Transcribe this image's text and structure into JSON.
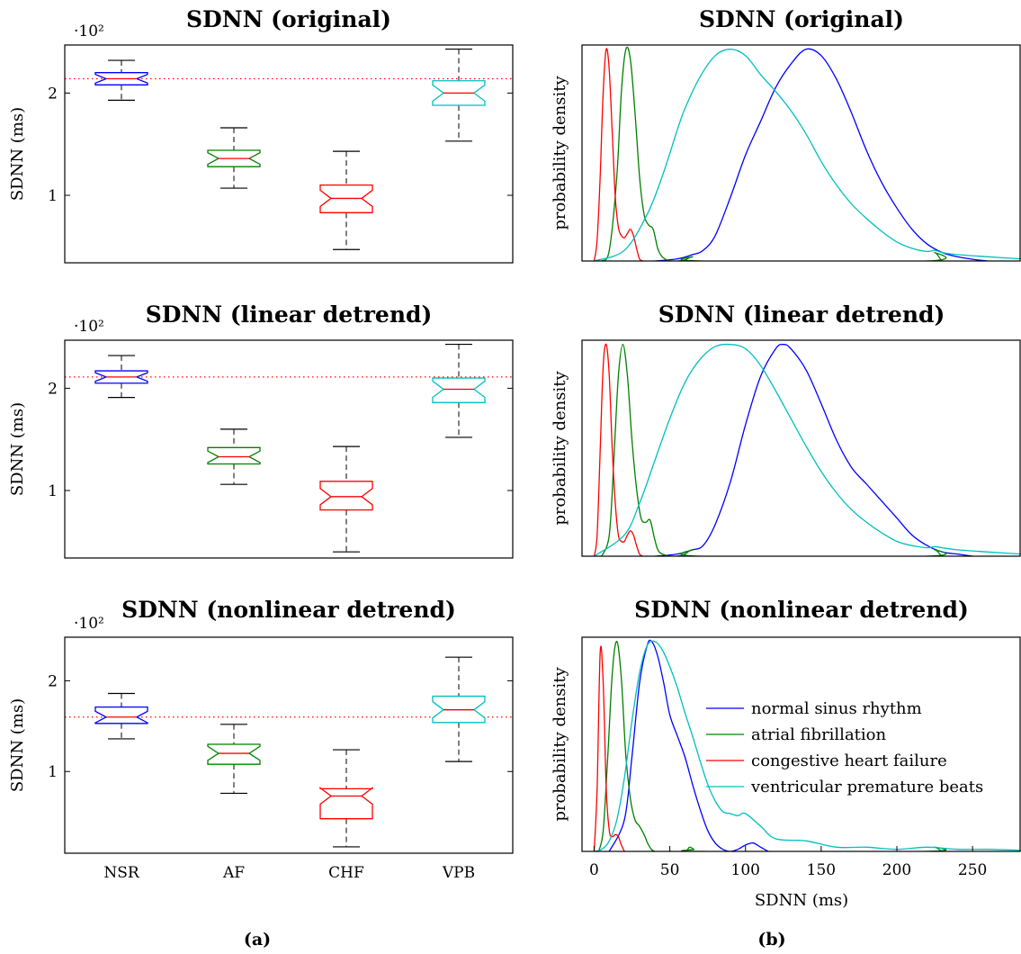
{
  "figure": {
    "left_label": "(a)",
    "right_label": "(b)"
  },
  "colors": {
    "normal sinus rhythm": "#0000ff",
    "atrial fibrillation": "#008000",
    "congestive heart failure": "#ff0000",
    "ventricular premature beats": "#00bfbf",
    "median": "#ff0000",
    "reference": "#ff0000"
  },
  "chart_data": [
    {
      "type": "box",
      "title": "SDNN (original)",
      "ylabel": "SDNN (ms)",
      "ytick_scale_label": "·10²",
      "yticks": [
        1,
        2
      ],
      "ylim": [
        0.34,
        2.47
      ],
      "categories": [
        "NSR",
        "AF",
        "CHF",
        "VPB"
      ],
      "reference_line": 2.14,
      "boxes": [
        {
          "category": "NSR",
          "whisker_low": 1.93,
          "q1": 2.08,
          "median": 2.14,
          "q3": 2.2,
          "whisker_high": 2.32
        },
        {
          "category": "AF",
          "whisker_low": 1.07,
          "q1": 1.28,
          "median": 1.36,
          "q3": 1.44,
          "whisker_high": 1.66
        },
        {
          "category": "CHF",
          "whisker_low": 0.47,
          "q1": 0.83,
          "median": 0.97,
          "q3": 1.1,
          "whisker_high": 1.43
        },
        {
          "category": "VPB",
          "whisker_low": 1.53,
          "q1": 1.88,
          "median": 2.0,
          "q3": 2.12,
          "whisker_high": 2.43
        }
      ]
    },
    {
      "type": "box",
      "title": "SDNN (linear detrend)",
      "ylabel": "SDNN (ms)",
      "ytick_scale_label": "·10²",
      "yticks": [
        1,
        2
      ],
      "ylim": [
        0.34,
        2.47
      ],
      "categories": [
        "NSR",
        "AF",
        "CHF",
        "VPB"
      ],
      "reference_line": 2.11,
      "boxes": [
        {
          "category": "NSR",
          "whisker_low": 1.91,
          "q1": 2.05,
          "median": 2.11,
          "q3": 2.17,
          "whisker_high": 2.32
        },
        {
          "category": "AF",
          "whisker_low": 1.06,
          "q1": 1.26,
          "median": 1.33,
          "q3": 1.42,
          "whisker_high": 1.6
        },
        {
          "category": "CHF",
          "whisker_low": 0.4,
          "q1": 0.81,
          "median": 0.94,
          "q3": 1.09,
          "whisker_high": 1.43
        },
        {
          "category": "VPB",
          "whisker_low": 1.52,
          "q1": 1.86,
          "median": 1.99,
          "q3": 2.1,
          "whisker_high": 2.43
        }
      ]
    },
    {
      "type": "box",
      "title": "SDNN (nonlinear detrend)",
      "ylabel": "SDNN (ms)",
      "ytick_scale_label": "·10²",
      "yticks": [
        1,
        2
      ],
      "ylim": [
        0.1,
        2.48
      ],
      "xtick_labels": [
        "NSR",
        "AF",
        "CHF",
        "VPB"
      ],
      "categories": [
        "NSR",
        "AF",
        "CHF",
        "VPB"
      ],
      "reference_line": 1.6,
      "boxes": [
        {
          "category": "NSR",
          "whisker_low": 1.36,
          "q1": 1.53,
          "median": 1.6,
          "q3": 1.71,
          "whisker_high": 1.86
        },
        {
          "category": "AF",
          "whisker_low": 0.76,
          "q1": 1.08,
          "median": 1.2,
          "q3": 1.3,
          "whisker_high": 1.52
        },
        {
          "category": "CHF",
          "whisker_low": 0.17,
          "q1": 0.48,
          "median": 0.73,
          "q3": 0.81,
          "whisker_high": 1.24
        },
        {
          "category": "VPB",
          "whisker_low": 1.11,
          "q1": 1.54,
          "median": 1.68,
          "q3": 1.83,
          "whisker_high": 2.26
        }
      ]
    },
    {
      "type": "line",
      "title": "SDNN (original)",
      "ylabel": "probability density",
      "xlim": [
        -8,
        282
      ],
      "ylim": [
        0,
        1.02
      ],
      "series": [
        {
          "name": "normal sinus rhythm",
          "x": [
            40,
            55,
            65,
            72,
            80,
            90,
            100,
            110,
            120,
            130,
            140,
            150,
            160,
            170,
            180,
            190,
            200,
            210,
            220,
            230,
            240,
            250,
            260
          ],
          "y": [
            0,
            0.01,
            0.03,
            0.05,
            0.12,
            0.3,
            0.5,
            0.66,
            0.82,
            0.93,
            1.0,
            0.97,
            0.86,
            0.7,
            0.52,
            0.37,
            0.25,
            0.15,
            0.08,
            0.04,
            0.02,
            0.008,
            0
          ]
        },
        {
          "name": "atrial fibrillation",
          "x": [
            5,
            10,
            15,
            18,
            21,
            24,
            27,
            30,
            33,
            36,
            39,
            42,
            45,
            50,
            55,
            60,
            65,
            70,
            220,
            225,
            230,
            235
          ],
          "y": [
            0,
            0.05,
            0.4,
            0.8,
            1.0,
            0.95,
            0.7,
            0.4,
            0.22,
            0.17,
            0.15,
            0.06,
            0.02,
            0,
            0,
            0.005,
            0.02,
            0,
            0,
            0.04,
            0,
            0
          ]
        },
        {
          "name": "congestive heart failure",
          "x": [
            0,
            2,
            4,
            6,
            8,
            10,
            12,
            14,
            16,
            18,
            20,
            22,
            24,
            26,
            28,
            30,
            32
          ],
          "y": [
            0,
            0.1,
            0.4,
            0.8,
            1.0,
            0.9,
            0.6,
            0.3,
            0.16,
            0.12,
            0.11,
            0.13,
            0.15,
            0.12,
            0.06,
            0.01,
            0
          ]
        },
        {
          "name": "ventricular premature beats",
          "x": [
            0,
            20,
            35,
            45,
            55,
            60,
            70,
            80,
            90,
            100,
            110,
            120,
            130,
            140,
            150,
            160,
            170,
            180,
            190,
            200,
            210,
            220,
            225,
            230,
            240,
            260,
            282
          ],
          "y": [
            0,
            0.05,
            0.22,
            0.4,
            0.62,
            0.72,
            0.87,
            0.97,
            1.0,
            0.97,
            0.88,
            0.8,
            0.71,
            0.6,
            0.47,
            0.36,
            0.27,
            0.2,
            0.14,
            0.09,
            0.06,
            0.045,
            0.05,
            0.04,
            0.03,
            0.02,
            0.01
          ]
        }
      ]
    },
    {
      "type": "line",
      "title": "SDNN (linear detrend)",
      "ylabel": "probability density",
      "xlim": [
        -8,
        282
      ],
      "ylim": [
        0,
        1.02
      ],
      "series": [
        {
          "name": "normal sinus rhythm",
          "x": [
            40,
            55,
            65,
            72,
            80,
            90,
            100,
            110,
            120,
            125,
            130,
            140,
            150,
            160,
            170,
            180,
            190,
            200,
            210,
            220,
            230,
            240,
            250
          ],
          "y": [
            0,
            0.01,
            0.03,
            0.05,
            0.15,
            0.35,
            0.62,
            0.85,
            0.98,
            1.0,
            0.98,
            0.88,
            0.72,
            0.55,
            0.42,
            0.34,
            0.26,
            0.18,
            0.1,
            0.05,
            0.02,
            0.01,
            0
          ]
        },
        {
          "name": "atrial fibrillation",
          "x": [
            5,
            10,
            13,
            16,
            19,
            22,
            25,
            28,
            31,
            34,
            37,
            40,
            43,
            50,
            55,
            60,
            65,
            70,
            220,
            225,
            230,
            235
          ],
          "y": [
            0,
            0.1,
            0.45,
            0.85,
            1.0,
            0.85,
            0.55,
            0.32,
            0.18,
            0.16,
            0.17,
            0.08,
            0.02,
            0,
            0,
            0.01,
            0.03,
            0,
            0,
            0.03,
            0,
            0
          ]
        },
        {
          "name": "congestive heart failure",
          "x": [
            0,
            2,
            4,
            6,
            8,
            10,
            12,
            14,
            16,
            18,
            20,
            22,
            24,
            26,
            28,
            30,
            32
          ],
          "y": [
            0,
            0.1,
            0.5,
            0.9,
            1.0,
            0.85,
            0.5,
            0.25,
            0.1,
            0.07,
            0.07,
            0.1,
            0.12,
            0.1,
            0.05,
            0.01,
            0
          ]
        },
        {
          "name": "ventricular premature beats",
          "x": [
            0,
            20,
            30,
            40,
            50,
            60,
            70,
            80,
            90,
            100,
            110,
            120,
            130,
            140,
            150,
            160,
            170,
            180,
            190,
            200,
            210,
            220,
            225,
            230,
            240,
            260,
            282
          ],
          "y": [
            0,
            0.1,
            0.25,
            0.45,
            0.65,
            0.82,
            0.93,
            0.99,
            1.0,
            0.98,
            0.9,
            0.78,
            0.65,
            0.52,
            0.4,
            0.3,
            0.22,
            0.16,
            0.11,
            0.07,
            0.05,
            0.04,
            0.045,
            0.04,
            0.03,
            0.02,
            0.01
          ]
        }
      ]
    },
    {
      "type": "line",
      "title": "SDNN (nonlinear detrend)",
      "ylabel": "probability density",
      "xlabel": "SDNN (ms)",
      "xticks": [
        0,
        50,
        100,
        150,
        200,
        250
      ],
      "xlim": [
        -8,
        282
      ],
      "ylim": [
        0,
        1.02
      ],
      "legend_position": "center-right",
      "series": [
        {
          "name": "normal sinus rhythm",
          "x": [
            10,
            20,
            25,
            30,
            35,
            38,
            42,
            46,
            50,
            55,
            60,
            65,
            70,
            75,
            80,
            85,
            90,
            95,
            100,
            105,
            110,
            115
          ],
          "y": [
            0,
            0.15,
            0.45,
            0.8,
            0.98,
            1.0,
            0.93,
            0.8,
            0.65,
            0.55,
            0.45,
            0.32,
            0.2,
            0.1,
            0.04,
            0.01,
            0,
            0.01,
            0.03,
            0.04,
            0.02,
            0
          ]
        },
        {
          "name": "atrial fibrillation",
          "x": [
            3,
            6,
            9,
            12,
            15,
            18,
            21,
            24,
            27,
            30,
            33,
            36,
            40,
            50,
            60,
            63,
            66,
            70,
            220,
            225,
            230,
            235
          ],
          "y": [
            0,
            0.1,
            0.45,
            0.85,
            1.0,
            0.82,
            0.45,
            0.25,
            0.15,
            0.12,
            0.08,
            0.03,
            0,
            0,
            0,
            0.02,
            0.01,
            0,
            0,
            0.02,
            0,
            0
          ]
        },
        {
          "name": "congestive heart failure",
          "x": [
            0,
            2,
            4,
            6,
            8,
            10,
            12,
            14,
            16,
            18,
            20
          ],
          "y": [
            0,
            0.3,
            0.95,
            0.8,
            0.3,
            0.1,
            0.07,
            0.08,
            0.07,
            0.03,
            0
          ]
        },
        {
          "name": "ventricular premature beats",
          "x": [
            0,
            5,
            10,
            15,
            20,
            25,
            30,
            35,
            40,
            45,
            50,
            55,
            60,
            65,
            70,
            75,
            80,
            85,
            90,
            95,
            100,
            110,
            120,
            140,
            160,
            180,
            200,
            220,
            240,
            260,
            282
          ],
          "y": [
            0,
            0.01,
            0.05,
            0.15,
            0.35,
            0.62,
            0.85,
            0.98,
            1.0,
            0.96,
            0.88,
            0.78,
            0.66,
            0.55,
            0.43,
            0.32,
            0.24,
            0.19,
            0.18,
            0.17,
            0.18,
            0.12,
            0.06,
            0.05,
            0.02,
            0.02,
            0.01,
            0.02,
            0.01,
            0.01,
            0.005
          ]
        }
      ]
    }
  ]
}
